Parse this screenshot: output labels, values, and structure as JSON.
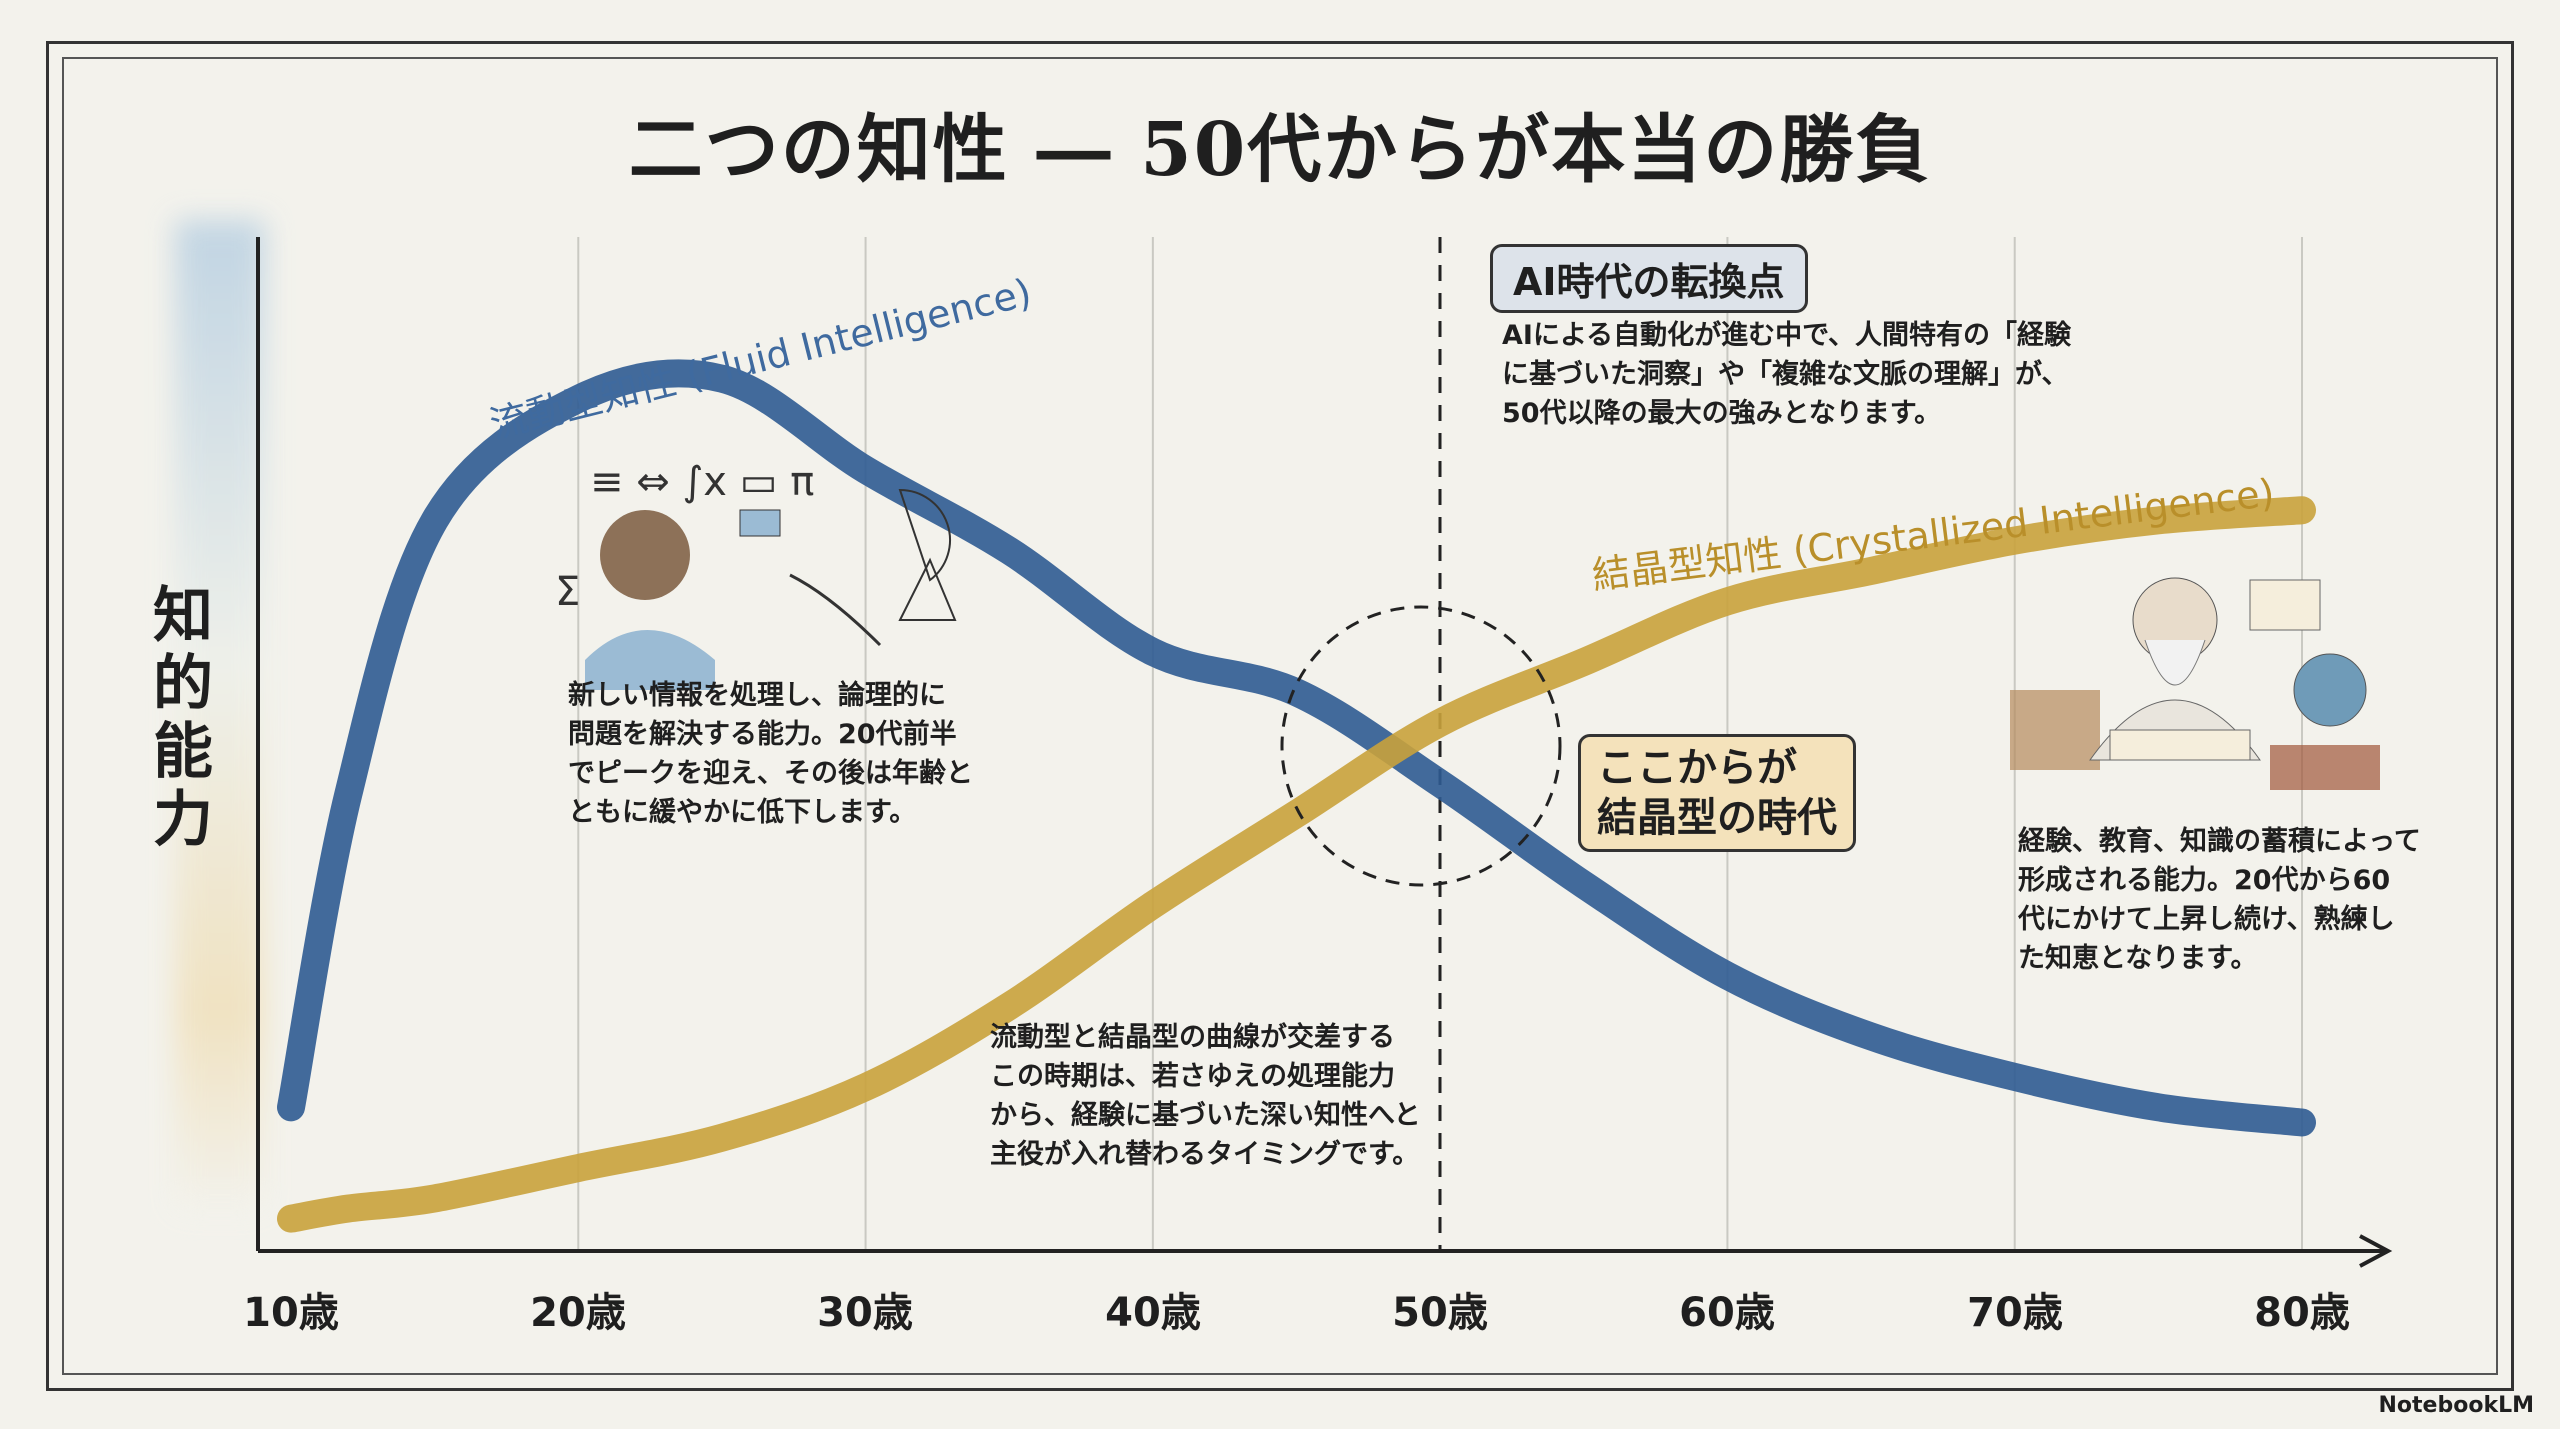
{
  "title": "二つの知性 ― 50代からが本当の勝負",
  "colors": {
    "fluid": "#2f5b92",
    "crystallized": "#c9a23c",
    "axis": "#222222"
  },
  "callouts": {
    "ai_turning_point": "AI時代の転換点",
    "ai_text": "AIによる自動化が進む中で、人間特有の「経験\nに基づいた洞察」や「複雑な文脈の理解」が、\n50代以降の最大の強みとなります。",
    "crossover": "ここからが\n結晶型の時代",
    "fluid_desc": "新しい情報を処理し、論理的に\n問題を解決する能力。20代前半\nでピークを迎え、その後は年齢と\nともに緩やかに低下します。",
    "crossover_desc": "流動型と結晶型の曲線が交差する\nこの時期は、若さゆえの処理能力\nから、経験に基づいた深い知性へと\n主役が入れ替わるタイミングです。",
    "cryst_desc": "経験、教育、知識の蓄積によって\n形成される能力。20代から60\n代にかけて上昇し続け、熟練し\nた知恵となります。"
  },
  "branding": "NotebookLM",
  "chart_data": {
    "type": "line",
    "title": "二つの知性 ― 50代からが本当の勝負",
    "xlabel": "",
    "ylabel": "知的能力",
    "xlim": [
      10,
      80
    ],
    "ylim": [
      0,
      100
    ],
    "x_ticks": [
      "10歳",
      "20歳",
      "30歳",
      "40歳",
      "50歳",
      "60歳",
      "70歳",
      "80歳"
    ],
    "grid": "vertical",
    "highlight_x": 50,
    "x": [
      10,
      12,
      15,
      20,
      25,
      30,
      35,
      40,
      45,
      50,
      55,
      60,
      65,
      70,
      75,
      80
    ],
    "series": [
      {
        "name": "流動型知性 (Fluid Intelligence)",
        "values": [
          14,
          45,
          72,
          84,
          86,
          77,
          69,
          59,
          55,
          46,
          36,
          27,
          21,
          17,
          14,
          12.5
        ]
      },
      {
        "name": "結晶型知性 (Crystallized Intelligence)",
        "values": [
          3,
          4,
          5,
          8,
          11,
          16,
          24,
          34,
          43,
          52,
          58,
          64,
          67,
          70,
          72,
          73
        ]
      }
    ]
  }
}
